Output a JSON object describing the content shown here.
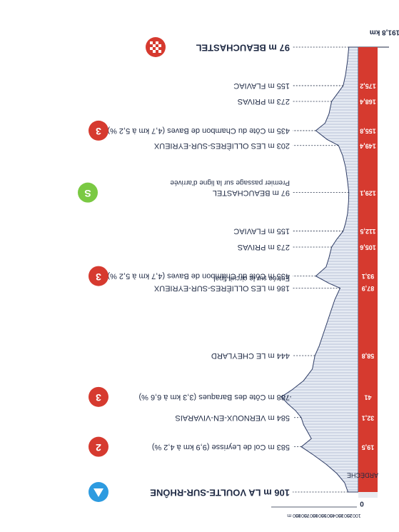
{
  "chart_data": {
    "type": "area",
    "orientation": "rotated-180",
    "x_unit": "km",
    "y_unit": "m",
    "ylim": [
      0,
      800
    ],
    "y_ticks": [
      "800 m",
      "700 m",
      "600 m",
      "500 m",
      "400 m",
      "300 m",
      "200 m",
      "100 m"
    ],
    "zero_label": "0",
    "total_label": "191,8 km",
    "region_label": "ARDÈCHE",
    "profile": [
      {
        "km": 0,
        "alt": 106
      },
      {
        "km": 4,
        "alt": 140
      },
      {
        "km": 8,
        "alt": 220
      },
      {
        "km": 12,
        "alt": 330
      },
      {
        "km": 16,
        "alt": 460
      },
      {
        "km": 19.5,
        "alt": 583
      },
      {
        "km": 23,
        "alt": 480
      },
      {
        "km": 26,
        "alt": 520
      },
      {
        "km": 29,
        "alt": 560
      },
      {
        "km": 32.1,
        "alt": 584
      },
      {
        "km": 35,
        "alt": 640
      },
      {
        "km": 38,
        "alt": 720
      },
      {
        "km": 41,
        "alt": 788
      },
      {
        "km": 44,
        "alt": 680
      },
      {
        "km": 48,
        "alt": 560
      },
      {
        "km": 53,
        "alt": 470
      },
      {
        "km": 58.8,
        "alt": 444
      },
      {
        "km": 63,
        "alt": 400
      },
      {
        "km": 68,
        "alt": 360
      },
      {
        "km": 73,
        "alt": 320
      },
      {
        "km": 78,
        "alt": 280
      },
      {
        "km": 83,
        "alt": 240
      },
      {
        "km": 87.9,
        "alt": 186
      },
      {
        "km": 90,
        "alt": 300
      },
      {
        "km": 93.1,
        "alt": 435
      },
      {
        "km": 97,
        "alt": 330
      },
      {
        "km": 101,
        "alt": 300
      },
      {
        "km": 105.6,
        "alt": 273
      },
      {
        "km": 109,
        "alt": 220
      },
      {
        "km": 112.5,
        "alt": 155
      },
      {
        "km": 116,
        "alt": 130
      },
      {
        "km": 120,
        "alt": 110
      },
      {
        "km": 125,
        "alt": 100
      },
      {
        "km": 129.1,
        "alt": 97
      },
      {
        "km": 134,
        "alt": 110
      },
      {
        "km": 140,
        "alt": 130
      },
      {
        "km": 145,
        "alt": 160
      },
      {
        "km": 149.4,
        "alt": 203
      },
      {
        "km": 152,
        "alt": 320
      },
      {
        "km": 155.8,
        "alt": 435
      },
      {
        "km": 159,
        "alt": 340
      },
      {
        "km": 163,
        "alt": 300
      },
      {
        "km": 168.4,
        "alt": 273
      },
      {
        "km": 172,
        "alt": 210
      },
      {
        "km": 175.2,
        "alt": 155
      },
      {
        "km": 180,
        "alt": 130
      },
      {
        "km": 186,
        "alt": 110
      },
      {
        "km": 191.8,
        "alt": 97
      }
    ],
    "km_markers": [
      {
        "km": 19.5,
        "label": "19,5"
      },
      {
        "km": 32.1,
        "label": "32,1"
      },
      {
        "km": 41,
        "label": "41"
      },
      {
        "km": 58.8,
        "label": "58,8"
      },
      {
        "km": 87.9,
        "label": "87,9"
      },
      {
        "km": 93.1,
        "label": "93,1"
      },
      {
        "km": 105.6,
        "label": "105,6"
      },
      {
        "km": 112.5,
        "label": "112,5"
      },
      {
        "km": 129.1,
        "label": "129,1"
      },
      {
        "km": 149.4,
        "label": "149,4"
      },
      {
        "km": 155.8,
        "label": "155,8"
      },
      {
        "km": 168.4,
        "label": "168,4"
      },
      {
        "km": 175.2,
        "label": "175,2"
      }
    ],
    "points": [
      {
        "km": 0,
        "alt_label": "106 m",
        "name": "LA VOULTE-SUR-RHÔNE",
        "bold": true,
        "badge": "start"
      },
      {
        "km": 19.5,
        "alt_label": "583 m",
        "name": "Col de Leyrisse",
        "detail": "(9,9 km à 4,2 %)",
        "badge": "2"
      },
      {
        "km": 32.1,
        "alt_label": "584 m",
        "name": "VERNOUX-EN-VIVARAIS"
      },
      {
        "km": 41,
        "alt_label": "788 m",
        "name": "Côte des Baraques",
        "detail": "(3,3 km à 6,6 %)",
        "badge": "3"
      },
      {
        "km": 58.8,
        "alt_label": "444 m",
        "name": "LE CHEYLARD"
      },
      {
        "km": 87.9,
        "alt_label": "186 m",
        "name": "LES OLLIÈRES-SUR-EYRIEUX",
        "note": "Entrée sur le circuit final"
      },
      {
        "km": 93.1,
        "alt_label": "435 m",
        "name": "Côte du Chambon de Baves",
        "detail": "(4,7 km à 5,2 %)",
        "badge": "3"
      },
      {
        "km": 105.6,
        "alt_label": "273 m",
        "name": "PRIVAS"
      },
      {
        "km": 112.5,
        "alt_label": "155 m",
        "name": "FLAVIAC"
      },
      {
        "km": 129.1,
        "alt_label": "97 m",
        "name": "BEAUCHASTEL",
        "note": "Premier passage sur la ligne d'arrivée",
        "badge": "sprint"
      },
      {
        "km": 149.4,
        "alt_label": "203 m",
        "name": "LES OLLIÈRES-SUR-EYRIEUX"
      },
      {
        "km": 155.8,
        "alt_label": "435 m",
        "name": "Côte du Chambon de Baves",
        "detail": "(4,7 km à 5,2 %)",
        "badge": "3"
      },
      {
        "km": 168.4,
        "alt_label": "273 m",
        "name": "PRIVAS"
      },
      {
        "km": 175.2,
        "alt_label": "155 m",
        "name": "FLAVIAC"
      },
      {
        "km": 191.8,
        "alt_label": "97 m",
        "name": "BEAUCHASTEL",
        "bold": true,
        "badge": "finish"
      }
    ],
    "sprint_badge_text": "S",
    "colors": {
      "road": "#d63a2f",
      "profile_fill": "#e6ebf3",
      "profile_line": "#2f3d66",
      "hatch": "#9aa6c4",
      "start": "#2d9be0",
      "climb": "#d63a2f",
      "sprint": "#7ac943",
      "text": "#1f2a44"
    }
  }
}
